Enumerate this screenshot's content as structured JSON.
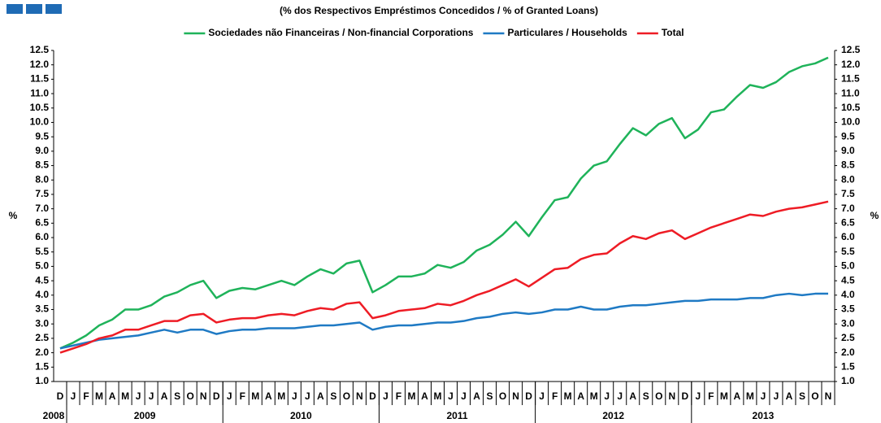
{
  "chart_data": {
    "type": "line",
    "subtitle": "(% dos Respectivos  Empréstimos Concedidos  / % of Granted Loans)",
    "ylabel": "%",
    "y2label": "%",
    "categories": [
      "D",
      "J",
      "F",
      "M",
      "A",
      "M",
      "J",
      "J",
      "A",
      "S",
      "O",
      "N",
      "D",
      "J",
      "F",
      "M",
      "A",
      "M",
      "J",
      "J",
      "A",
      "S",
      "O",
      "N",
      "D",
      "J",
      "F",
      "M",
      "A",
      "M",
      "J",
      "J",
      "A",
      "S",
      "O",
      "N",
      "D",
      "J",
      "F",
      "M",
      "A",
      "M",
      "J",
      "J",
      "A",
      "S",
      "O",
      "N",
      "D",
      "J",
      "F",
      "M",
      "A",
      "M",
      "J",
      "J",
      "A",
      "S",
      "O",
      "N"
    ],
    "years": [
      "2008",
      "2009",
      "2010",
      "2011",
      "2012",
      "2013"
    ],
    "series": [
      {
        "name": "Sociedades não Financeiras / Non-financial Corporations",
        "color": "#1fb35a",
        "values": [
          2.15,
          2.35,
          2.6,
          2.95,
          3.15,
          3.5,
          3.5,
          3.65,
          3.95,
          4.1,
          4.35,
          4.5,
          3.9,
          4.15,
          4.25,
          4.2,
          4.35,
          4.5,
          4.35,
          4.65,
          4.9,
          4.75,
          5.1,
          5.2,
          4.1,
          4.35,
          4.65,
          4.65,
          4.75,
          5.05,
          4.95,
          5.15,
          5.55,
          5.75,
          6.1,
          6.55,
          6.05,
          6.7,
          7.3,
          7.4,
          8.05,
          8.5,
          8.65,
          9.25,
          9.8,
          9.55,
          9.95,
          10.15,
          9.45,
          9.75,
          10.35,
          10.45,
          10.9,
          11.3,
          11.2,
          11.4,
          11.75,
          11.95,
          12.05,
          12.25
        ]
      },
      {
        "name": "Particulares / Households",
        "color": "#1f7ac4",
        "values": [
          2.15,
          2.25,
          2.35,
          2.45,
          2.5,
          2.55,
          2.6,
          2.7,
          2.8,
          2.7,
          2.8,
          2.8,
          2.65,
          2.75,
          2.8,
          2.8,
          2.85,
          2.85,
          2.85,
          2.9,
          2.95,
          2.95,
          3.0,
          3.05,
          2.8,
          2.9,
          2.95,
          2.95,
          3.0,
          3.05,
          3.05,
          3.1,
          3.2,
          3.25,
          3.35,
          3.4,
          3.35,
          3.4,
          3.5,
          3.5,
          3.6,
          3.5,
          3.5,
          3.6,
          3.65,
          3.65,
          3.7,
          3.75,
          3.8,
          3.8,
          3.85,
          3.85,
          3.85,
          3.9,
          3.9,
          4.0,
          4.05,
          4.0,
          4.05,
          4.05
        ]
      },
      {
        "name": "Total",
        "color": "#ee1c25",
        "values": [
          2.0,
          2.15,
          2.3,
          2.5,
          2.6,
          2.8,
          2.8,
          2.95,
          3.1,
          3.1,
          3.3,
          3.35,
          3.05,
          3.15,
          3.2,
          3.2,
          3.3,
          3.35,
          3.3,
          3.45,
          3.55,
          3.5,
          3.7,
          3.75,
          3.2,
          3.3,
          3.45,
          3.5,
          3.55,
          3.7,
          3.65,
          3.8,
          4.0,
          4.15,
          4.35,
          4.55,
          4.3,
          4.6,
          4.9,
          4.95,
          5.25,
          5.4,
          5.45,
          5.8,
          6.05,
          5.95,
          6.15,
          6.25,
          5.95,
          6.15,
          6.35,
          6.5,
          6.65,
          6.8,
          6.75,
          6.9,
          7.0,
          7.05,
          7.15,
          7.25
        ]
      }
    ],
    "ylim": [
      1,
      12.5
    ],
    "yticks": [
      {
        "value": 1,
        "label": "1.0"
      },
      1.5,
      {
        "value": 2,
        "label": "2.0"
      },
      2.5,
      {
        "value": 3,
        "label": "3.0"
      },
      3.5,
      {
        "value": 4,
        "label": "4.0"
      },
      4.5,
      {
        "value": 5,
        "label": "5.0"
      },
      5.5,
      {
        "value": 6,
        "label": "6.0"
      },
      6.5,
      {
        "value": 7,
        "label": "7.0"
      },
      7.5,
      {
        "value": 8,
        "label": "8.0"
      },
      8.5,
      {
        "value": 9,
        "label": "9.0"
      },
      9.5,
      {
        "value": 10,
        "label": "10.0"
      },
      10.5,
      {
        "value": 11,
        "label": "11.0"
      },
      11.5,
      {
        "value": 12,
        "label": "12.0"
      },
      12.5
    ],
    "y2lim": [
      1,
      12.5
    ],
    "y2ticks": [
      {
        "value": 1,
        "label": "1.0"
      },
      1.5,
      {
        "value": 2,
        "label": "2.0"
      },
      2.5,
      {
        "value": 3,
        "label": "3.0"
      },
      3.5,
      {
        "value": 4,
        "label": "4.0"
      },
      4.5,
      {
        "value": 5,
        "label": "5.0"
      },
      5.5,
      {
        "value": 6,
        "label": "6.0"
      },
      6.5,
      {
        "value": 7,
        "label": "7.0"
      },
      7.5,
      {
        "value": 8,
        "label": "8.0"
      },
      8.5,
      {
        "value": 9,
        "label": "9.0"
      },
      9.5,
      {
        "value": 10,
        "label": "10.0"
      },
      10.5,
      {
        "value": 11,
        "label": "11.0"
      },
      11.5,
      {
        "value": 12,
        "label": "12.0"
      },
      12.5
    ],
    "legend": "top"
  }
}
